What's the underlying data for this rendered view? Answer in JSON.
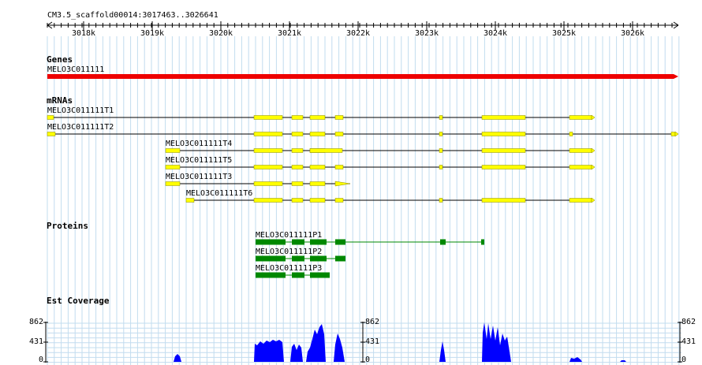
{
  "ruler": {
    "title": "CM3.5_scaffold00014:3017463..3026641",
    "ticks": [
      "3018k",
      "3019k",
      "3020k",
      "3021k",
      "3022k",
      "3023k",
      "3024k",
      "3025k",
      "3026k"
    ]
  },
  "tracks": {
    "genes": {
      "header": "Genes",
      "items": [
        {
          "label": "MELO3C011111",
          "color": "#ee0000"
        }
      ]
    },
    "mrnas": {
      "header": "mRNAs",
      "items": [
        {
          "label": "MELO3C011111T1"
        },
        {
          "label": "MELO3C011111T2"
        },
        {
          "label": "MELO3C011111T4"
        },
        {
          "label": "MELO3C011111T5"
        },
        {
          "label": "MELO3C011111T3"
        },
        {
          "label": "MELO3C011111T6"
        }
      ],
      "color": "#ffff00"
    },
    "proteins": {
      "header": "Proteins",
      "items": [
        {
          "label": "MELO3C011111P1"
        },
        {
          "label": "MELO3C011111P2"
        },
        {
          "label": "MELO3C011111P3"
        }
      ],
      "color": "#008800"
    },
    "coverage": {
      "header": "Est Coverage",
      "scale": [
        "862",
        "431",
        "0"
      ],
      "color": "#0000ff"
    }
  }
}
